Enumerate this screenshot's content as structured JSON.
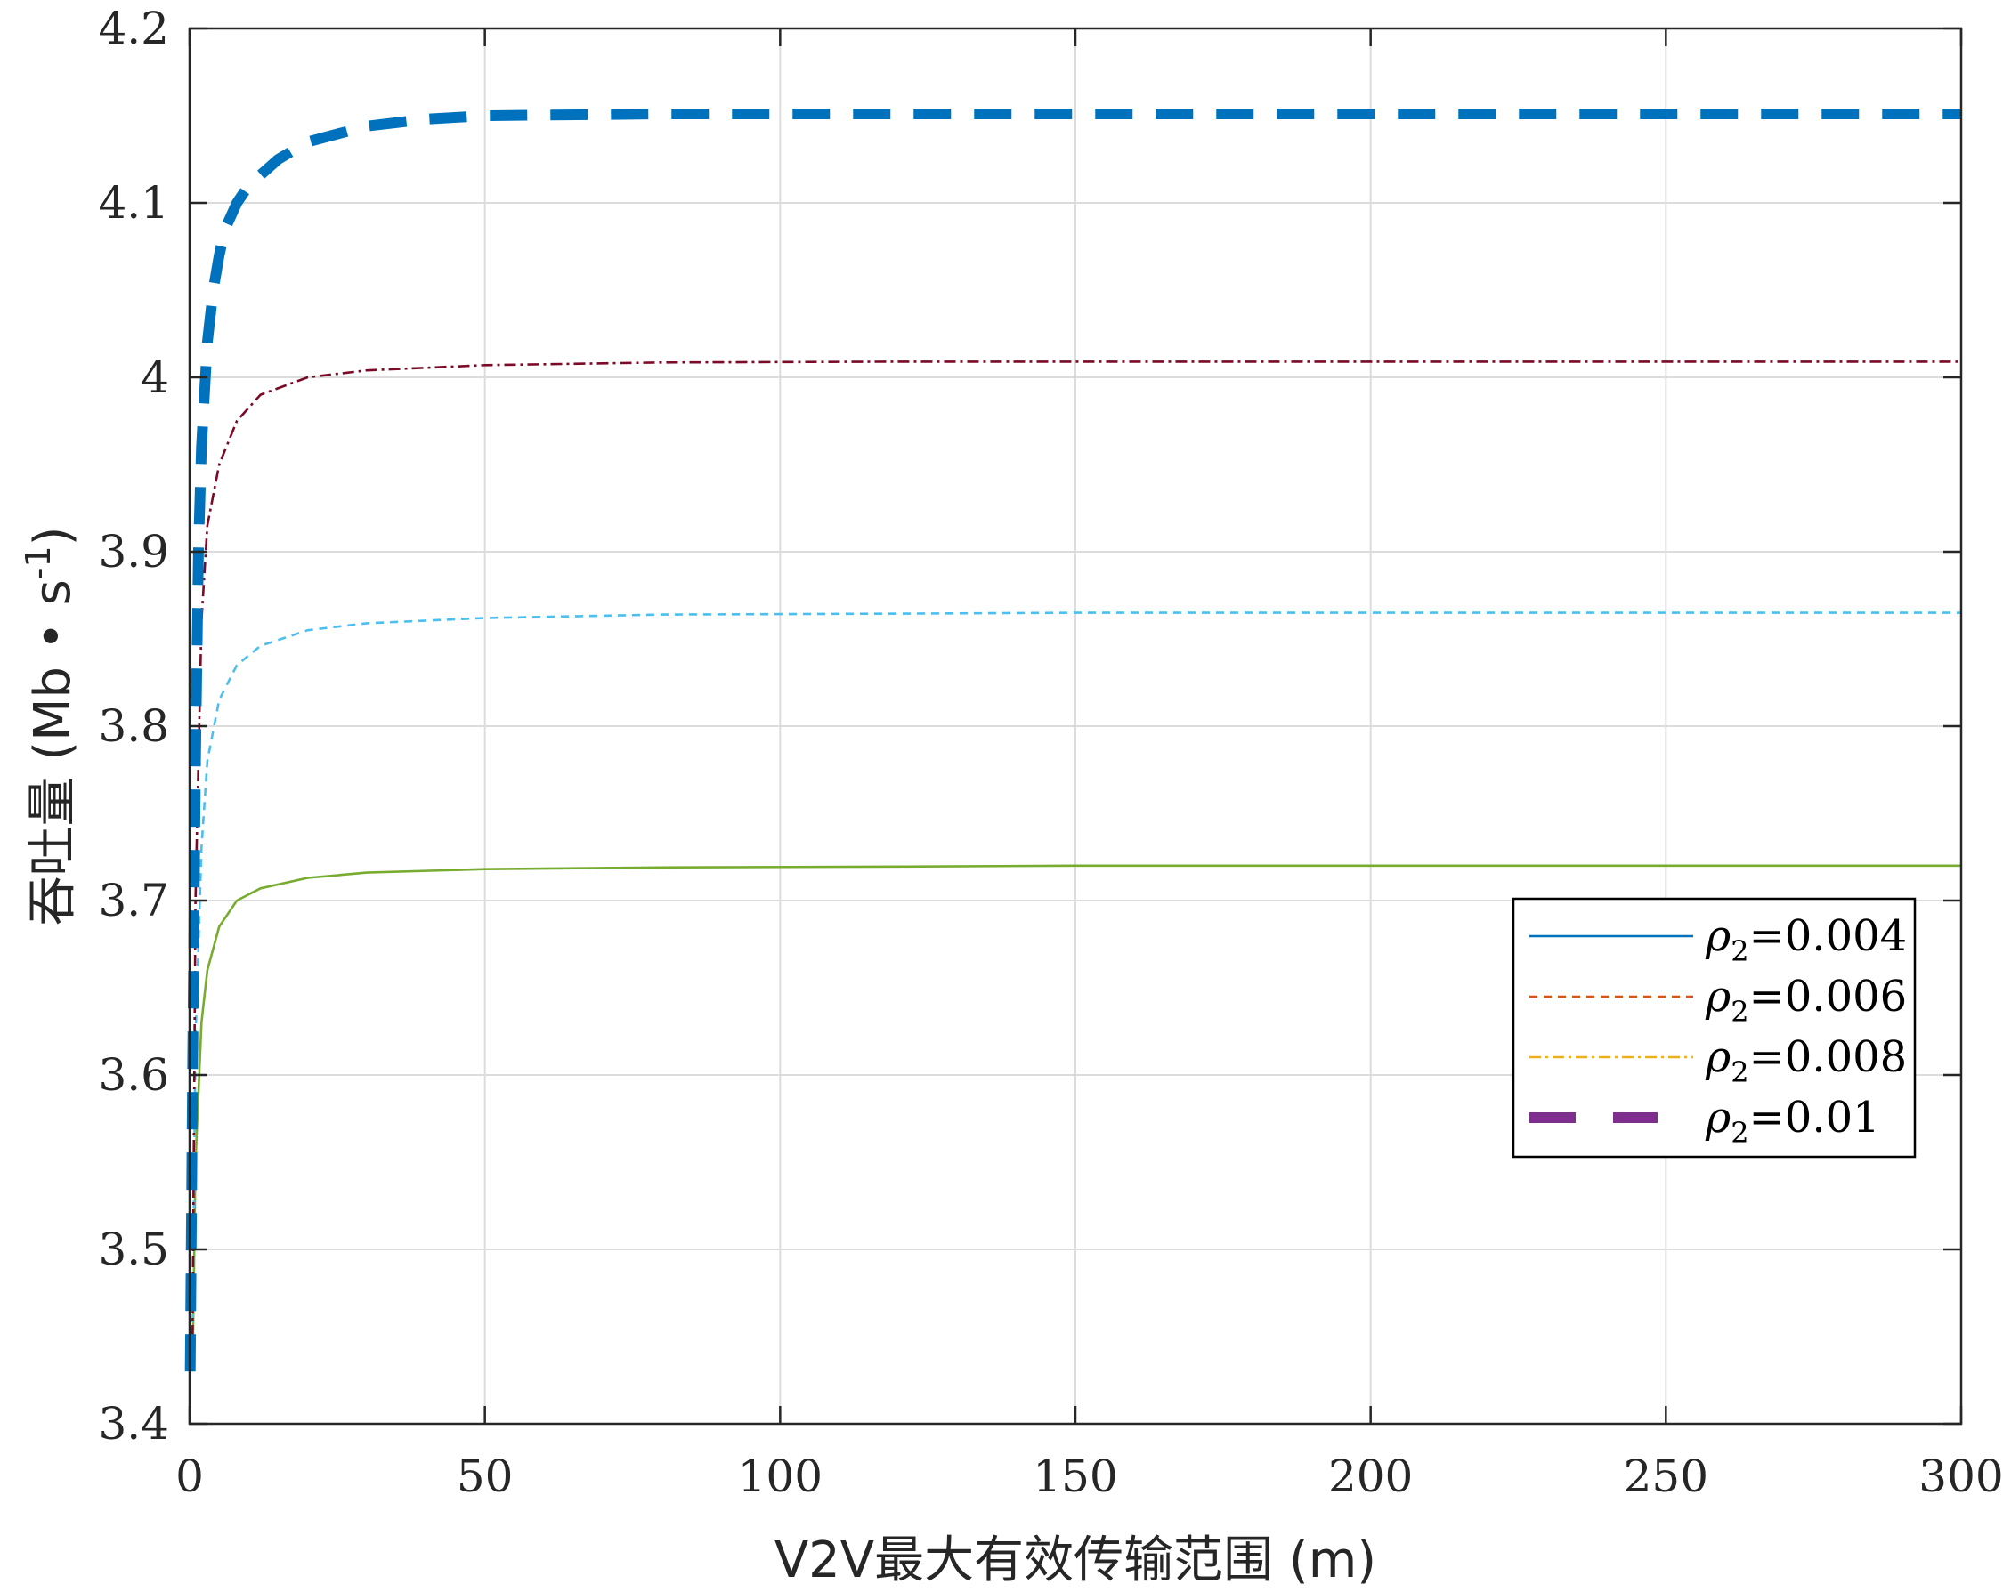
{
  "chart_data": {
    "type": "line",
    "title": "",
    "xlabel": "V2V最大有效传输范围 (m)",
    "ylabel_parts": {
      "main": "吞吐量 (Mb • s",
      "sup": "-1",
      "close": ")"
    },
    "xlim": [
      0,
      300
    ],
    "ylim": [
      3.4,
      4.2
    ],
    "xticks": [
      "0",
      "50",
      "100",
      "150",
      "200",
      "250",
      "300"
    ],
    "yticks": [
      "3.4",
      "3.5",
      "3.6",
      "3.7",
      "3.8",
      "3.9",
      "4",
      "4.1",
      "4.2"
    ],
    "grid": true,
    "legend_position": "center-right",
    "legend_entries": [
      {
        "symbol": "ρ",
        "sub": "2",
        "text": "=0.004",
        "color": "#0072BD",
        "style": "solid"
      },
      {
        "symbol": "ρ",
        "sub": "2",
        "text": "=0.006",
        "color": "#D95319",
        "style": "dashed"
      },
      {
        "symbol": "ρ",
        "sub": "2",
        "text": "=0.008",
        "color": "#EDB120",
        "style": "dashdot"
      },
      {
        "symbol": "ρ",
        "sub": "2",
        "text": "=0.01",
        "color": "#7E2F8E",
        "style": "thick-dashed"
      }
    ],
    "series": [
      {
        "color": "#77AC30",
        "style": "solid",
        "x": [
          0.5,
          1,
          2,
          3,
          5,
          8,
          12,
          20,
          30,
          50,
          80,
          120,
          150,
          200,
          250,
          300
        ],
        "y": [
          3.43,
          3.55,
          3.63,
          3.66,
          3.685,
          3.7,
          3.707,
          3.713,
          3.716,
          3.718,
          3.719,
          3.7195,
          3.72,
          3.72,
          3.72,
          3.72
        ]
      },
      {
        "color": "#4DBEEE",
        "style": "dashed",
        "x": [
          0.5,
          1,
          2,
          3,
          5,
          8,
          12,
          20,
          30,
          50,
          80,
          120,
          150,
          200,
          250,
          300
        ],
        "y": [
          3.45,
          3.62,
          3.73,
          3.78,
          3.815,
          3.835,
          3.846,
          3.855,
          3.859,
          3.862,
          3.864,
          3.8645,
          3.865,
          3.865,
          3.865,
          3.865
        ]
      },
      {
        "color": "#7A0A26",
        "style": "dashdot",
        "x": [
          0.5,
          1,
          2,
          3,
          5,
          8,
          12,
          20,
          30,
          50,
          80,
          120,
          150,
          200,
          250,
          300
        ],
        "y": [
          3.45,
          3.7,
          3.86,
          3.915,
          3.95,
          3.975,
          3.99,
          4.0,
          4.004,
          4.007,
          4.0085,
          4.009,
          4.009,
          4.009,
          4.009,
          4.009
        ]
      },
      {
        "color": "#0072BD",
        "style": "thick-dashed",
        "x": [
          0.1,
          0.5,
          1,
          1.5,
          2,
          3,
          4,
          5,
          6,
          8,
          10,
          15,
          20,
          30,
          40,
          50,
          80,
          150,
          300
        ],
        "y": [
          3.43,
          3.6,
          3.78,
          3.9,
          3.96,
          4.02,
          4.05,
          4.07,
          4.085,
          4.1,
          4.11,
          4.125,
          4.135,
          4.144,
          4.148,
          4.15,
          4.151,
          4.151,
          4.151
        ]
      }
    ]
  }
}
